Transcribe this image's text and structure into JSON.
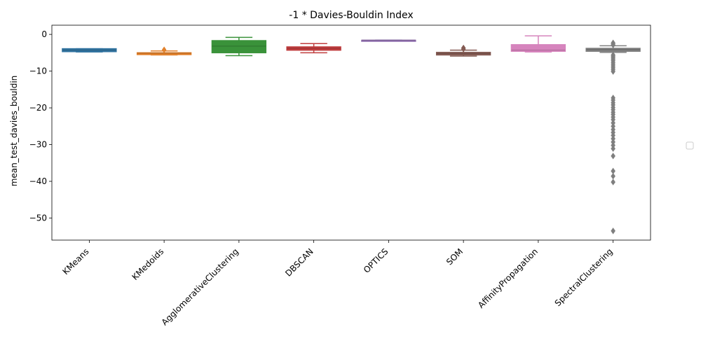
{
  "chart_data": {
    "type": "box",
    "title": "-1 * Davies-Bouldin Index",
    "xlabel": "",
    "ylabel": "mean_test_davies_bouldin",
    "ylim": [
      -56,
      2.5
    ],
    "yticks": [
      0,
      -10,
      -20,
      -30,
      -40,
      -50
    ],
    "ytick_labels": [
      "0",
      "−10",
      "−20",
      "−30",
      "−40",
      "−50"
    ],
    "legend": "right (empty)",
    "grid": false,
    "categories": [
      "KMeans",
      "KMedoids",
      "AgglomerativeClustering",
      "DBSCAN",
      "OPTICS",
      "SOM",
      "AffinityPropagation",
      "SpectralClustering"
    ],
    "boxes": [
      {
        "name": "KMeans",
        "color": "#3274a1",
        "whislo": -4.8,
        "q1": -4.7,
        "median": -4.3,
        "q3": -3.9,
        "whishi": -3.9,
        "fliers": []
      },
      {
        "name": "KMedoids",
        "color": "#e1812c",
        "whislo": -5.6,
        "q1": -5.5,
        "median": -5.1,
        "q3": -5.0,
        "whishi": -4.5,
        "fliers": [
          -4.2
        ]
      },
      {
        "name": "AgglomerativeClustering",
        "color": "#3a923a",
        "whislo": -5.8,
        "q1": -5.0,
        "median": -3.2,
        "q3": -1.7,
        "whishi": -0.8,
        "fliers": []
      },
      {
        "name": "DBSCAN",
        "color": "#c03d3e",
        "whislo": -5.0,
        "q1": -4.3,
        "median": -3.8,
        "q3": -3.4,
        "whishi": -2.5,
        "fliers": []
      },
      {
        "name": "OPTICS",
        "color": "#9372b2",
        "whislo": -1.6,
        "q1": -1.6,
        "median": -1.6,
        "q3": -1.6,
        "whishi": -1.6,
        "fliers": []
      },
      {
        "name": "SOM",
        "color": "#845b53",
        "whislo": -5.9,
        "q1": -5.6,
        "median": -5.2,
        "q3": -4.9,
        "whishi": -4.3,
        "fliers": [
          -3.7,
          -4.0
        ]
      },
      {
        "name": "AffinityPropagation",
        "color": "#d684bd",
        "whislo": -4.8,
        "q1": -4.6,
        "median": -4.3,
        "q3": -2.8,
        "whishi": -0.4,
        "fliers": []
      },
      {
        "name": "SpectralClustering",
        "color": "#7f7f7f",
        "whislo": -4.9,
        "q1": -4.6,
        "median": -4.1,
        "q3": -3.8,
        "whishi": -3.1,
        "fliers": [
          -2.3,
          -2.6,
          -2.9,
          -5.6,
          -5.9,
          -6.3,
          -6.7,
          -7.1,
          -7.6,
          -8.1,
          -8.6,
          -9.1,
          -9.6,
          -10.1,
          -17.3,
          -17.9,
          -18.6,
          -19.2,
          -19.9,
          -20.5,
          -21.2,
          -21.8,
          -22.5,
          -23.2,
          -24.1,
          -25.0,
          -25.9,
          -26.7,
          -27.5,
          -28.4,
          -29.3,
          -30.2,
          -31.1,
          -33.1,
          -37.2,
          -38.6,
          -40.2,
          -53.5
        ]
      }
    ]
  }
}
